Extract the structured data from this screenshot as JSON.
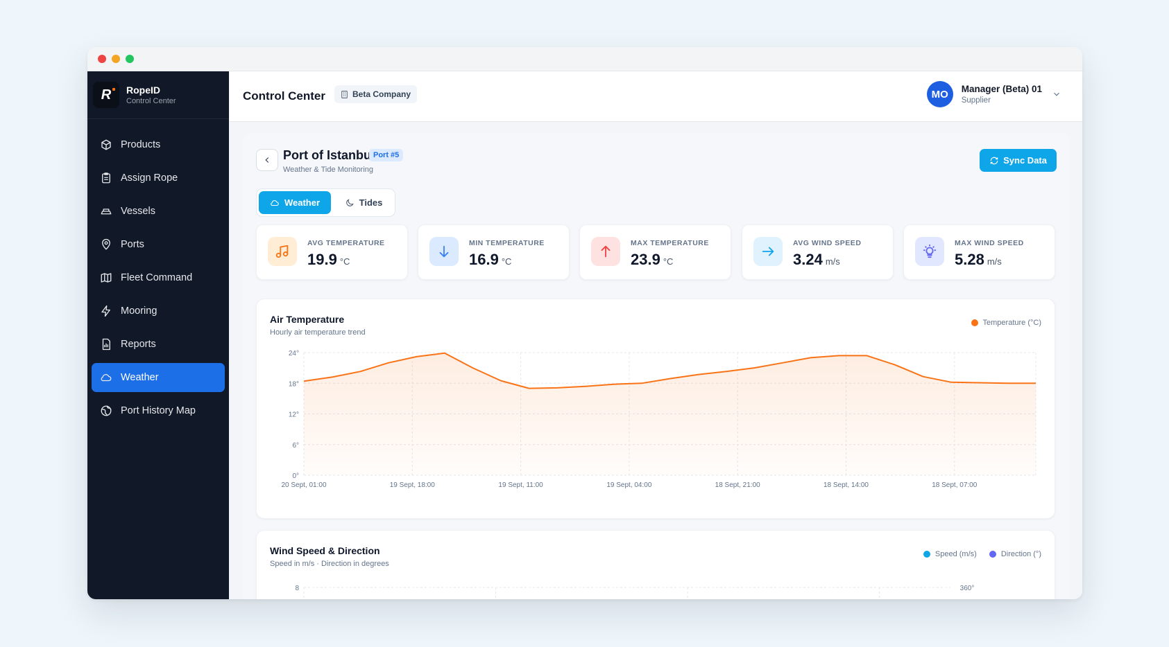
{
  "app": {
    "brand_name": "RopeID",
    "brand_sub": "Control Center"
  },
  "sidebar": {
    "items": [
      {
        "label": "Products",
        "icon": "box-icon"
      },
      {
        "label": "Assign Rope",
        "icon": "clipboard-icon"
      },
      {
        "label": "Vessels",
        "icon": "vessel-icon"
      },
      {
        "label": "Ports",
        "icon": "pin-icon"
      },
      {
        "label": "Fleet Command",
        "icon": "map-icon"
      },
      {
        "label": "Mooring",
        "icon": "bolt-icon"
      },
      {
        "label": "Reports",
        "icon": "report-icon"
      },
      {
        "label": "Weather",
        "icon": "cloud-icon",
        "active": true
      },
      {
        "label": "Port History Map",
        "icon": "globe-icon"
      }
    ]
  },
  "header": {
    "title": "Control Center",
    "company": "Beta Company",
    "user": {
      "initials": "MO",
      "name": "Manager (Beta) 01",
      "role": "Supplier"
    }
  },
  "page": {
    "title": "Port of Istanbul",
    "badge": "Port #5",
    "subtitle": "Weather & Tide Monitoring",
    "sync_label": "Sync Data",
    "tabs": [
      {
        "label": "Weather",
        "active": true
      },
      {
        "label": "Tides",
        "active": false
      }
    ]
  },
  "stats": [
    {
      "label": "AVG TEMPERATURE",
      "value": "19.9",
      "unit": "°C",
      "icon": "music-note-icon",
      "bg": "#ffedd5",
      "color": "#f97316"
    },
    {
      "label": "MIN TEMPERATURE",
      "value": "16.9",
      "unit": "°C",
      "icon": "arrow-down-icon",
      "bg": "#dbeafe",
      "color": "#3b82f6"
    },
    {
      "label": "MAX TEMPERATURE",
      "value": "23.9",
      "unit": "°C",
      "icon": "arrow-up-icon",
      "bg": "#fee2e2",
      "color": "#ef4444"
    },
    {
      "label": "AVG WIND SPEED",
      "value": "3.24",
      "unit": "m/s",
      "icon": "arrow-right-icon",
      "bg": "#e0f2fe",
      "color": "#0ea5e9"
    },
    {
      "label": "MAX WIND SPEED",
      "value": "5.28",
      "unit": "m/s",
      "icon": "bulb-icon",
      "bg": "#e0e7ff",
      "color": "#6366f1"
    }
  ],
  "air_chart": {
    "title": "Air Temperature",
    "subtitle": "Hourly air temperature trend",
    "legend": "Temperature (°C)",
    "color": "#f97316"
  },
  "wind_chart": {
    "title": "Wind Speed & Direction",
    "subtitle": "Speed in m/s · Direction in degrees",
    "legend_speed": "Speed (m/s)",
    "legend_direction": "Direction (°)",
    "speed_color": "#0ea5e9",
    "direction_color": "#6366f1",
    "y_left_top": "8",
    "y_right_top": "360°"
  },
  "chart_data": [
    {
      "type": "area",
      "title": "Air Temperature",
      "subtitle": "Hourly air temperature trend",
      "series": [
        {
          "name": "Temperature (°C)",
          "values": [
            18.4,
            19.2,
            20.3,
            22.0,
            23.2,
            23.9,
            21.0,
            18.5,
            17.0,
            17.1,
            17.4,
            17.8,
            18.0,
            18.9,
            19.7,
            20.3,
            21.0,
            22.0,
            23.0,
            23.4,
            23.4,
            21.6,
            19.3,
            18.2,
            18.1,
            18.0,
            18.0
          ]
        }
      ],
      "x_ticks": [
        "20 Sept, 01:00",
        "19 Sept, 18:00",
        "19 Sept, 11:00",
        "19 Sept, 04:00",
        "18 Sept, 21:00",
        "18 Sept, 14:00",
        "18 Sept, 07:00"
      ],
      "y_ticks": [
        "24°",
        "18°",
        "12°",
        "6°",
        "0°"
      ],
      "ylim": [
        0,
        24
      ],
      "grid": true,
      "legend_position": "top-right"
    },
    {
      "type": "line",
      "title": "Wind Speed & Direction",
      "subtitle": "Speed in m/s · Direction in degrees",
      "series": [
        {
          "name": "Speed (m/s)",
          "values": []
        },
        {
          "name": "Direction (°)",
          "values": []
        }
      ],
      "y_left_max": 8,
      "y_right_max": 360,
      "legend_position": "top-right"
    }
  ]
}
